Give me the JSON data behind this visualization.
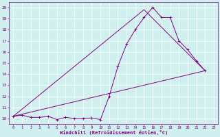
{
  "xlabel": "Windchill (Refroidissement éolien,°C)",
  "bg_color": "#cff0ee",
  "line_color": "#800080",
  "grid_color": "#ffffff",
  "xlim": [
    -0.5,
    23.5
  ],
  "ylim": [
    9.5,
    20.5
  ],
  "xticks": [
    0,
    1,
    2,
    3,
    4,
    5,
    6,
    7,
    8,
    9,
    10,
    11,
    12,
    13,
    14,
    15,
    16,
    17,
    18,
    19,
    20,
    21,
    22,
    23
  ],
  "yticks": [
    10,
    11,
    12,
    13,
    14,
    15,
    16,
    17,
    18,
    19,
    20
  ],
  "line1_x": [
    0,
    1,
    2,
    3,
    4,
    5,
    6,
    7,
    8,
    9,
    10,
    11,
    12,
    13,
    14,
    15,
    16,
    17,
    18,
    19,
    20,
    21,
    22
  ],
  "line1_y": [
    10.2,
    10.3,
    10.1,
    10.1,
    10.2,
    9.9,
    10.1,
    10.0,
    10.0,
    10.05,
    9.9,
    12.0,
    14.7,
    16.7,
    18.0,
    19.1,
    20.0,
    19.1,
    19.1,
    17.0,
    16.2,
    15.2,
    14.3
  ],
  "line2_x": [
    0,
    22
  ],
  "line2_y": [
    10.2,
    14.3
  ],
  "line3_x": [
    0,
    15,
    22
  ],
  "line3_y": [
    10.2,
    19.8,
    14.3
  ]
}
